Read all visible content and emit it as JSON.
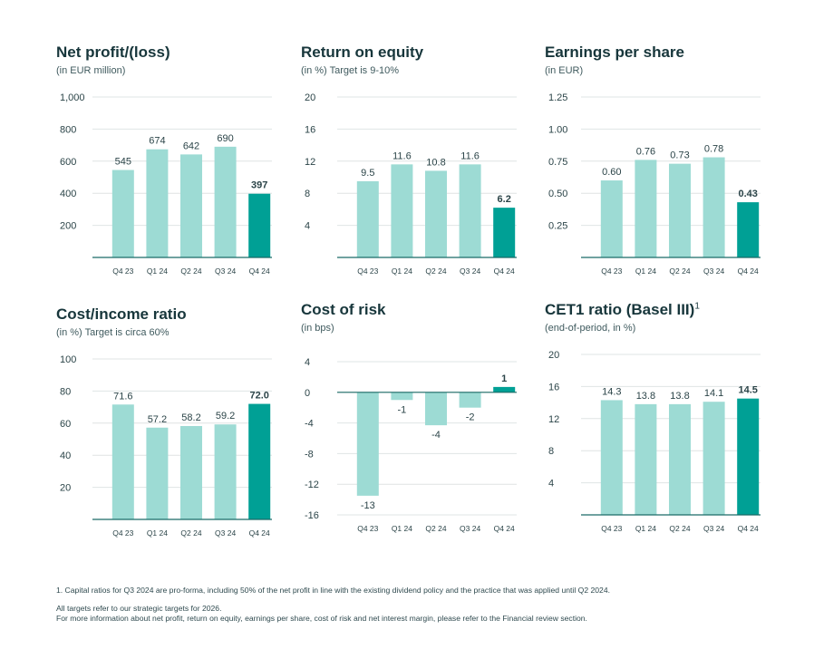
{
  "colors": {
    "bar": "#9ddbd4",
    "highlight": "#00a095",
    "axis": "#1b6b67",
    "grid": "#dfe4e4",
    "text": "#2b4448"
  },
  "chart_data": [
    {
      "id": "net-profit",
      "type": "bar",
      "title": "Net profit/(loss)",
      "subtitle": "(in EUR million)",
      "categories": [
        "Q4 23",
        "Q1 24",
        "Q2 24",
        "Q3 24",
        "Q4 24"
      ],
      "values": [
        545,
        674,
        642,
        690,
        397
      ],
      "labels": [
        "545",
        "674",
        "642",
        "690",
        "397"
      ],
      "ylim": [
        0,
        1000
      ],
      "yticks": [
        200,
        400,
        600,
        800,
        1000
      ],
      "ytick_labels": [
        "200",
        "400",
        "600",
        "800",
        "1,000"
      ],
      "highlight_index": 4
    },
    {
      "id": "roe",
      "type": "bar",
      "title": "Return on equity",
      "subtitle": "(in %) Target is 9-10%",
      "categories": [
        "Q4 23",
        "Q1 24",
        "Q2 24",
        "Q3 24",
        "Q4 24"
      ],
      "values": [
        9.5,
        11.6,
        10.8,
        11.6,
        6.2
      ],
      "labels": [
        "9.5",
        "11.6",
        "10.8",
        "11.6",
        "6.2"
      ],
      "ylim": [
        0,
        20
      ],
      "yticks": [
        4,
        8,
        12,
        16,
        20
      ],
      "ytick_labels": [
        "4",
        "8",
        "12",
        "16",
        "20"
      ],
      "highlight_index": 4
    },
    {
      "id": "eps",
      "type": "bar",
      "title": "Earnings per share",
      "subtitle": "(in EUR)",
      "categories": [
        "Q4 23",
        "Q1 24",
        "Q2 24",
        "Q3 24",
        "Q4 24"
      ],
      "values": [
        0.6,
        0.76,
        0.73,
        0.78,
        0.43
      ],
      "labels": [
        "0.60",
        "0.76",
        "0.73",
        "0.78",
        "0.43"
      ],
      "ylim": [
        0,
        1.25
      ],
      "yticks": [
        0.25,
        0.5,
        0.75,
        1.0,
        1.25
      ],
      "ytick_labels": [
        "0.25",
        "0.50",
        "0.75",
        "1.00",
        "1.25"
      ],
      "highlight_index": 4
    },
    {
      "id": "cost-income",
      "type": "bar",
      "title": "Cost/income ratio",
      "subtitle": "(in %) Target is circa 60%",
      "categories": [
        "Q4 23",
        "Q1 24",
        "Q2 24",
        "Q3 24",
        "Q4 24"
      ],
      "values": [
        71.6,
        57.2,
        58.2,
        59.2,
        72.0
      ],
      "labels": [
        "71.6",
        "57.2",
        "58.2",
        "59.2",
        "72.0"
      ],
      "ylim": [
        0,
        100
      ],
      "yticks": [
        20,
        40,
        60,
        80,
        100
      ],
      "ytick_labels": [
        "20",
        "40",
        "60",
        "80",
        "100"
      ],
      "highlight_index": 4
    },
    {
      "id": "cost-of-risk",
      "type": "bar",
      "title": "Cost of risk",
      "subtitle": "(in bps)",
      "categories": [
        "Q4 23",
        "Q1 24",
        "Q2 24",
        "Q3 24",
        "Q4 24"
      ],
      "values": [
        -13.5,
        -1,
        -4.3,
        -2,
        0.7
      ],
      "labels": [
        "-13",
        "-1",
        "-4",
        "-2",
        "1"
      ],
      "ylim": [
        -16,
        4
      ],
      "yticks": [
        -16,
        -12,
        -8,
        -4,
        0,
        4
      ],
      "ytick_labels": [
        "-16",
        "-12",
        "-8",
        "-4",
        "0",
        "4"
      ],
      "highlight_index": 4
    },
    {
      "id": "cet1",
      "type": "bar",
      "title": "CET1 ratio (Basel III)",
      "title_sup": "1",
      "subtitle": "(end-of-period, in %)",
      "categories": [
        "Q4 23",
        "Q1 24",
        "Q2 24",
        "Q3 24",
        "Q4 24"
      ],
      "values": [
        14.3,
        13.8,
        13.8,
        14.1,
        14.5
      ],
      "labels": [
        "14.3",
        "13.8",
        "13.8",
        "14.1",
        "14.5"
      ],
      "ylim": [
        0,
        20
      ],
      "yticks": [
        4,
        8,
        12,
        16,
        20
      ],
      "ytick_labels": [
        "4",
        "8",
        "12",
        "16",
        "20"
      ],
      "highlight_index": 4
    }
  ],
  "footnotes": {
    "note1": "1. Capital ratios for Q3 2024 are pro-forma, including 50% of the net profit in line with the existing dividend policy and the practice that was applied until Q2 2024.",
    "note2": "All targets refer to our strategic targets for 2026.",
    "note3": "For more information about net profit, return on equity, earnings per share, cost of risk and net interest margin, please refer to the Financial review section."
  }
}
